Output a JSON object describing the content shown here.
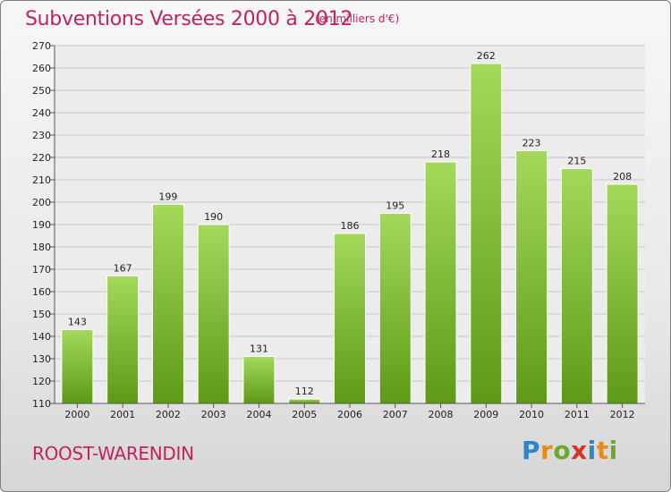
{
  "title": "Subventions Versées 2000 à 2012",
  "subtitle": "(en milliers d'€)",
  "location": "ROOST-WARENDIN",
  "brand": "Proxiti",
  "colors": {
    "title": "#c3225f",
    "bar_light": "#9ed454",
    "bar_dark": "#5e9c1a"
  },
  "chart_data": {
    "type": "bar",
    "title": "Subventions Versées 2000 à 2012",
    "subtitle": "(en milliers d'€)",
    "xlabel": "",
    "ylabel": "",
    "ylim": [
      110,
      270
    ],
    "ytick_step": 10,
    "grid": true,
    "categories": [
      "2000",
      "2001",
      "2002",
      "2003",
      "2004",
      "2005",
      "2006",
      "2007",
      "2008",
      "2009",
      "2010",
      "2011",
      "2012"
    ],
    "values": [
      143,
      167,
      199,
      190,
      131,
      112,
      186,
      195,
      218,
      262,
      223,
      215,
      208
    ]
  }
}
